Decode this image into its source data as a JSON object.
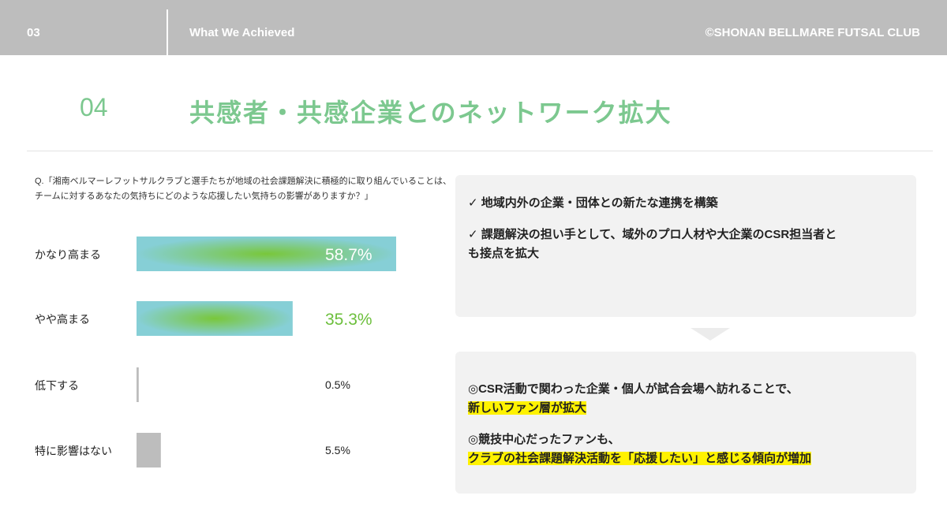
{
  "header": {
    "page_number": "03",
    "section": "What We Achieved",
    "brand": "©SHONAN BELLMARE FUTSAL CLUB"
  },
  "heading": {
    "number": "04",
    "title": "共感者・共感企業とのネットワーク拡大"
  },
  "question": {
    "line1": "Q.「湘南ベルマーレフットサルクラブと選手たちが地域の社会課題解決に積極的に取り組んでいることは、",
    "line2": "チームに対するあなたの気持ちにどのような応援したい気持ちの影響がありますか？」"
  },
  "chart_data": {
    "type": "bar",
    "orientation": "horizontal",
    "categories": [
      "かなり高まる",
      "やや高まる",
      "低下する",
      "特に影響はない"
    ],
    "values": [
      58.7,
      35.3,
      0.5,
      5.5
    ],
    "value_labels": [
      "58.7%",
      "35.3%",
      "0.5%",
      "5.5%"
    ],
    "unit": "%",
    "xlim": [
      0,
      58.7
    ],
    "colors": {
      "gradient_outer": "#86cfd6",
      "gradient_center": "#79c73a",
      "minor_bar": "#bdbdbd",
      "label_inside": "#ffffff",
      "label_green": "#6cbf3c",
      "label_default": "#222222"
    }
  },
  "findings": {
    "items": [
      "✓ 地域内外の企業・団体との新たな連携を構築",
      "✓ 課題解決の担い手として、域外のプロ人材や大企業のCSR担当者と",
      "も接点を拡大"
    ]
  },
  "outcomes": {
    "item1_text": "◎CSR活動で関わった企業・個人が試合会場へ訪れることで、",
    "item1_highlight": "新しいファン層が拡大",
    "item2_text": "◎競技中心だったファンも、",
    "item2_highlight": "クラブの社会課題解決活動を「応援したい」と感じる傾向が増加",
    "highlight_color": "#fff200"
  }
}
